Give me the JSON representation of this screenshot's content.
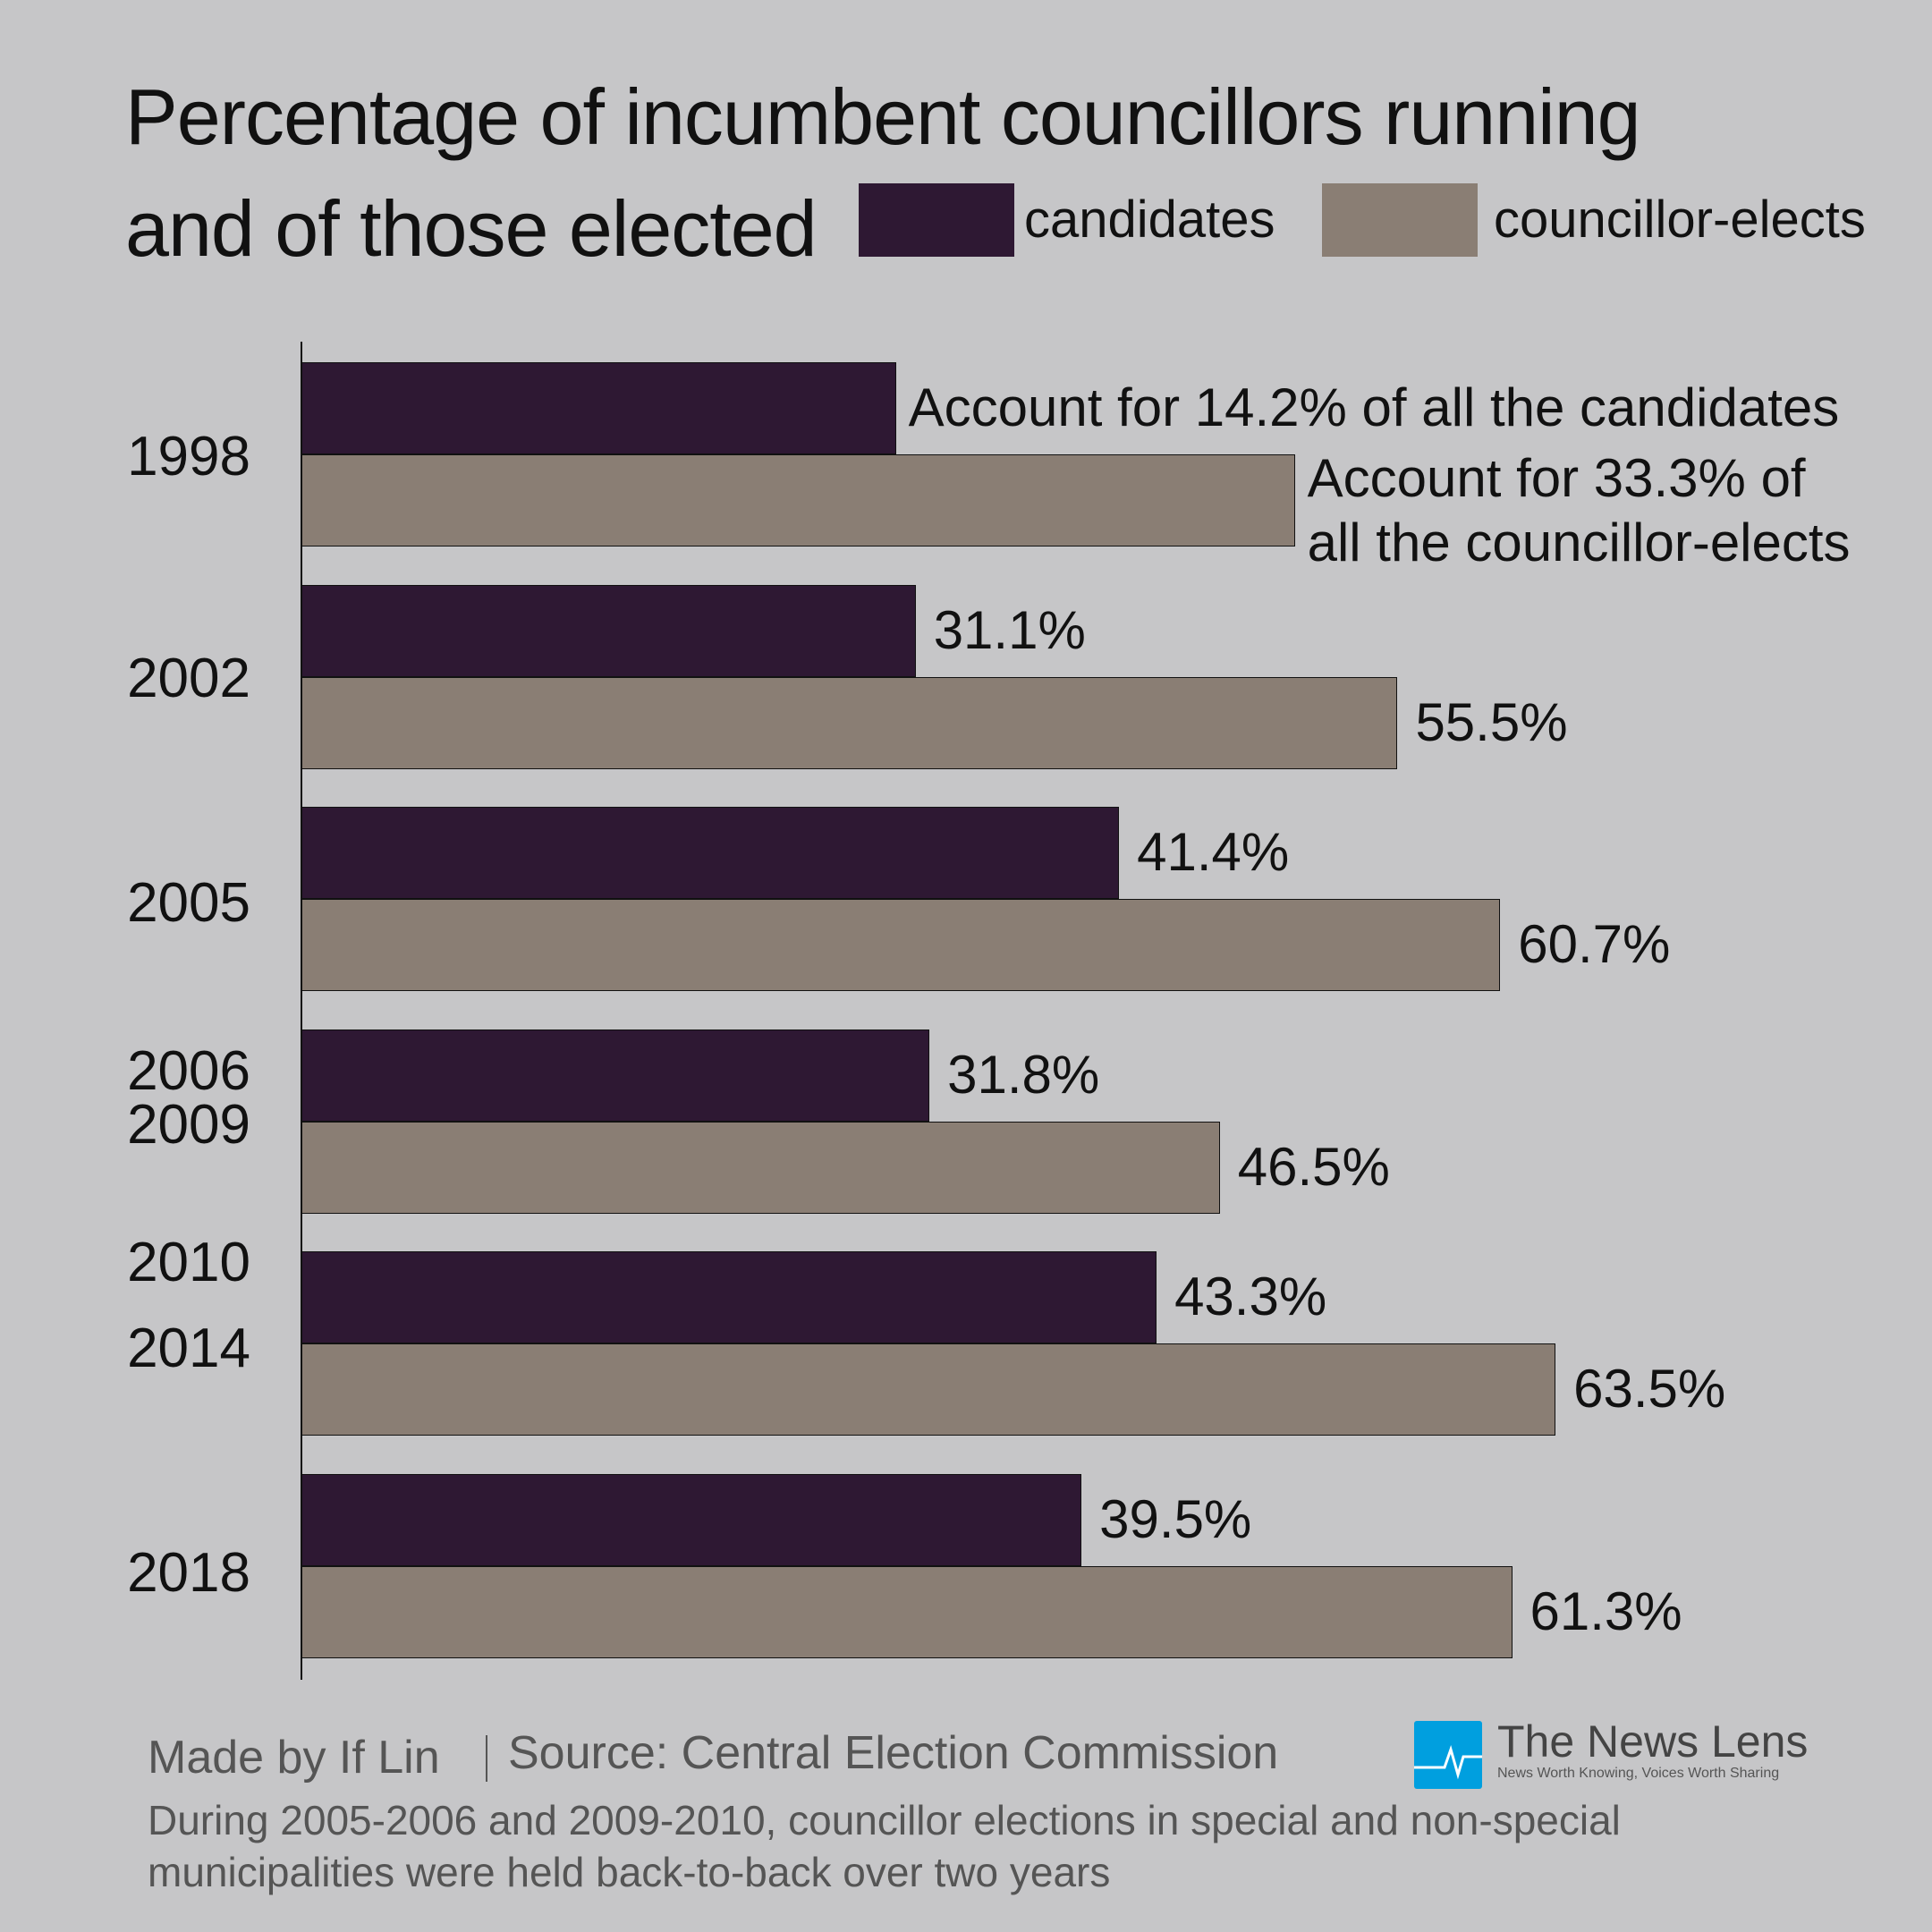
{
  "chart_data": {
    "type": "bar",
    "orientation": "horizontal",
    "title": "Percentage of incumbent councillors running and of those elected",
    "title_lines": [
      "Percentage of incumbent councillors running",
      "and of those elected"
    ],
    "categories": [
      "1998",
      "2002",
      "2005",
      "2006\n2009",
      "2010\n2014",
      "2018"
    ],
    "category_lines": [
      [
        "1998"
      ],
      [
        "2002"
      ],
      [
        "2005"
      ],
      [
        "2006",
        "2009"
      ],
      [
        "2010",
        "2014"
      ],
      [
        "2018"
      ]
    ],
    "series": [
      {
        "name": "candidates",
        "color": "#2e1833",
        "values": [
          30.1,
          31.1,
          41.4,
          31.8,
          43.3,
          39.5
        ],
        "labels": [
          "Account for 14.2% of all the candidates",
          "31.1%",
          "41.4%",
          "31.8%",
          "43.3%",
          "39.5%"
        ]
      },
      {
        "name": "councillor-elects",
        "color": "#8a7e74",
        "values": [
          50.3,
          55.5,
          60.7,
          46.5,
          63.5,
          61.3
        ],
        "labels": [
          "Account for 33.3% of\nall the councillor-elects",
          "55.5%",
          "60.7%",
          "46.5%",
          "63.5%",
          "61.3%"
        ]
      }
    ],
    "xlim": [
      0,
      80
    ],
    "grid": false,
    "legend": "top-right",
    "xlabel": "",
    "ylabel": ""
  },
  "footer": {
    "credit": "Made by If Lin",
    "source": "Source: Central Election Commission",
    "note_lines": [
      "During 2005-2006 and 2009-2010, councillor elections in special and non-special",
      "municipalities were held back-to-back over two years"
    ]
  },
  "logo": {
    "name": "The News Lens",
    "tagline": "News Worth Knowing, Voices Worth Sharing",
    "color": "#009fdf",
    "icon": "heartbeat-icon"
  },
  "colors": {
    "background": "#c6c6c8"
  }
}
